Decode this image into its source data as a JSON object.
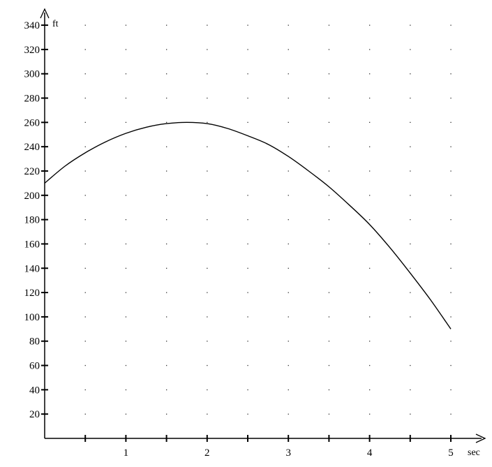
{
  "chart_data": {
    "type": "line",
    "title": "",
    "xlabel": "sec",
    "ylabel": "ft",
    "xlim": [
      0,
      5.3
    ],
    "ylim": [
      0,
      350
    ],
    "x_ticks": [
      0.5,
      1,
      1.5,
      2,
      2.5,
      3,
      3.5,
      4,
      4.5,
      5
    ],
    "x_tick_labels": [
      {
        "x": 1,
        "label": "1"
      },
      {
        "x": 2,
        "label": "2"
      },
      {
        "x": 3,
        "label": "3"
      },
      {
        "x": 4,
        "label": "4"
      },
      {
        "x": 5,
        "label": "5"
      }
    ],
    "y_ticks": [
      20,
      40,
      60,
      80,
      100,
      120,
      140,
      160,
      180,
      200,
      220,
      240,
      260,
      280,
      300,
      320,
      340
    ],
    "y_tick_labels": [
      "20",
      "40",
      "60",
      "80",
      "100",
      "120",
      "140",
      "160",
      "180",
      "200",
      "220",
      "240",
      "260",
      "280",
      "300",
      "320",
      "340"
    ],
    "grid": "dotted",
    "series": [
      {
        "color": "#000000",
        "x": [
          0,
          0.25,
          0.5,
          0.75,
          1,
          1.25,
          1.5,
          1.75,
          2,
          2.25,
          2.5,
          2.75,
          3,
          3.25,
          3.5,
          3.75,
          4,
          4.25,
          4.5,
          4.75,
          5
        ],
        "y": [
          210,
          224,
          235,
          244,
          251,
          256,
          259,
          260,
          259,
          255,
          249,
          242,
          232,
          220,
          207,
          192,
          176,
          157,
          136,
          114,
          90
        ]
      }
    ]
  }
}
